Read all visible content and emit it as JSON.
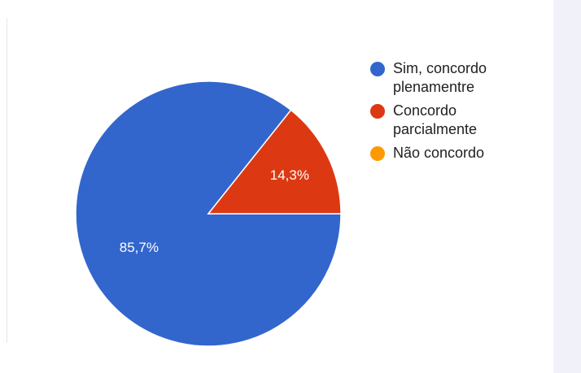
{
  "chart_data": {
    "type": "pie",
    "title": "",
    "categories": [
      "Sim, concordo plenamentre",
      "Concordo parcialmente",
      "Não concordo"
    ],
    "values": [
      85.7,
      14.3,
      0
    ],
    "value_labels": [
      "85,7%",
      "14,3%",
      ""
    ],
    "colors": [
      "#3366cc",
      "#dc3912",
      "#ff9900"
    ],
    "legend": {
      "position": "right",
      "entries": [
        "Sim, concordo\nplenamentre",
        "Concordo\nparcialmente",
        "Não concordo"
      ]
    }
  }
}
